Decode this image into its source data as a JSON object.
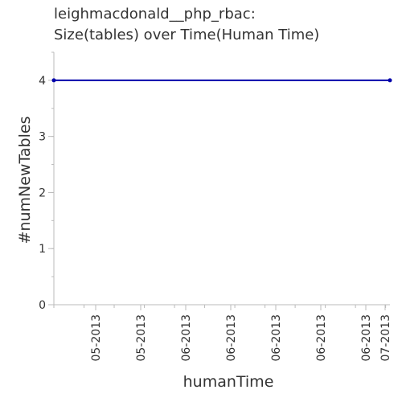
{
  "chart_data": {
    "type": "line",
    "title": [
      "leighmacdonald__php_rbac:",
      "Size(tables) over Time(Human Time)"
    ],
    "xlabel": "humanTime",
    "ylabel": "#numNewTables",
    "ylim": [
      0,
      4.5
    ],
    "yticks": [
      0,
      1,
      2,
      3,
      4
    ],
    "xticks": [
      "05-2013",
      "05-2013",
      "06-2013",
      "06-2013",
      "06-2013",
      "06-2013",
      "06-2013",
      "07-2013"
    ],
    "grid": false,
    "series": [
      {
        "color": "#0000aa",
        "points": [
          {
            "x": "2013-04-15",
            "y": 4
          },
          {
            "x": "2013-07-02",
            "y": 4
          }
        ]
      }
    ]
  }
}
